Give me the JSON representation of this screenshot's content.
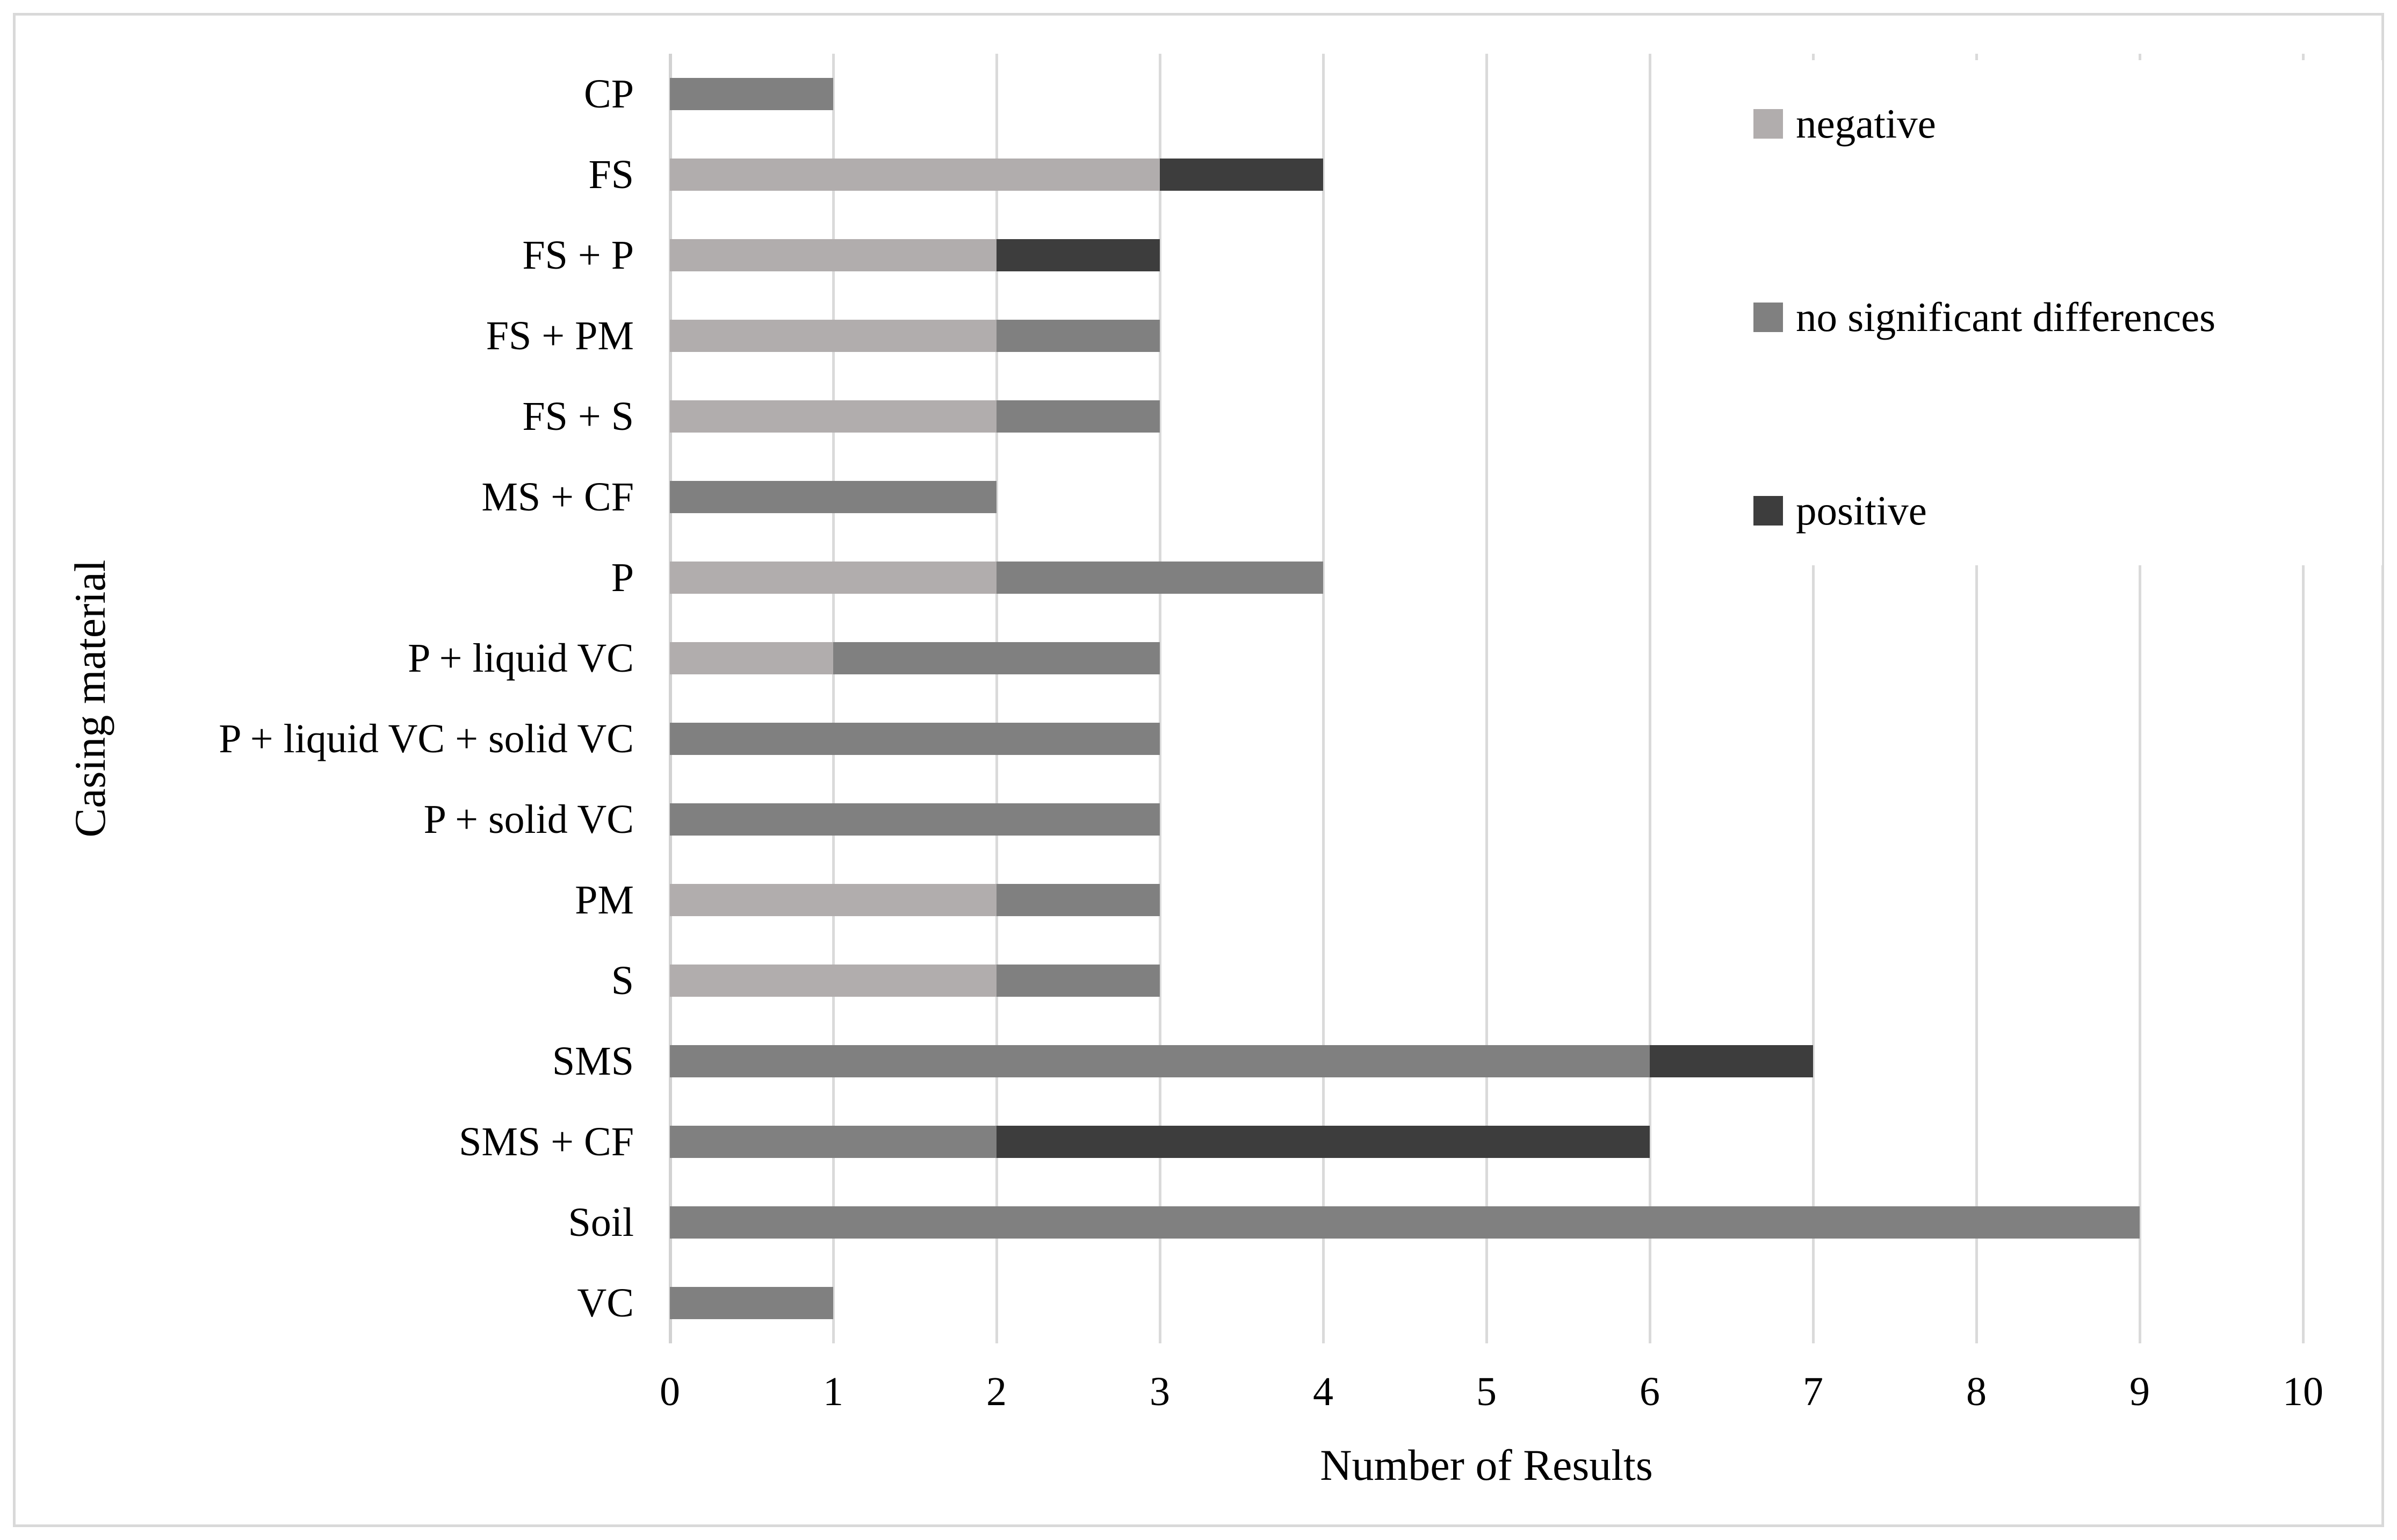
{
  "figure": {
    "background": "#ffffff",
    "border_color": "#d9d9d9"
  },
  "chart_data": {
    "type": "bar",
    "orientation": "horizontal",
    "stacked": true,
    "title": "",
    "xlabel": "Number of Results",
    "ylabel": "Casing material",
    "xlim": [
      0,
      10
    ],
    "x_ticks": [
      "0",
      "1",
      "2",
      "3",
      "4",
      "5",
      "6",
      "7",
      "8",
      "9",
      "10"
    ],
    "grid": true,
    "legend_position": "top-right",
    "categories": [
      "CP",
      "FS",
      "FS + P",
      "FS + PM",
      "FS + S",
      "MS + CF",
      "P",
      "P + liquid VC",
      "P + liquid VC + solid VC",
      "P + solid VC",
      "PM",
      "S",
      "SMS",
      "SMS + CF",
      "Soil",
      "VC"
    ],
    "series": [
      {
        "name": "negative",
        "color": "#b1adad",
        "values": [
          0,
          3,
          2,
          2,
          2,
          0,
          2,
          1,
          0,
          0,
          2,
          2,
          0,
          0,
          0,
          0
        ]
      },
      {
        "name": "no significant differences",
        "color": "#808080",
        "values": [
          1,
          0,
          0,
          1,
          1,
          2,
          2,
          2,
          3,
          3,
          1,
          1,
          6,
          2,
          9,
          1
        ]
      },
      {
        "name": "positive",
        "color": "#3d3d3d",
        "values": [
          0,
          1,
          1,
          0,
          0,
          0,
          0,
          0,
          0,
          0,
          0,
          0,
          1,
          4,
          0,
          0
        ]
      }
    ]
  },
  "legend": {
    "entries": [
      {
        "label": "negative",
        "color": "#b1adad"
      },
      {
        "label": "no significant differences",
        "color": "#808080"
      },
      {
        "label": "positive",
        "color": "#3d3d3d"
      }
    ]
  },
  "colors": {
    "gridline": "#dadada",
    "zero_axis_line": "#d2d2d2",
    "text": "#000000"
  }
}
